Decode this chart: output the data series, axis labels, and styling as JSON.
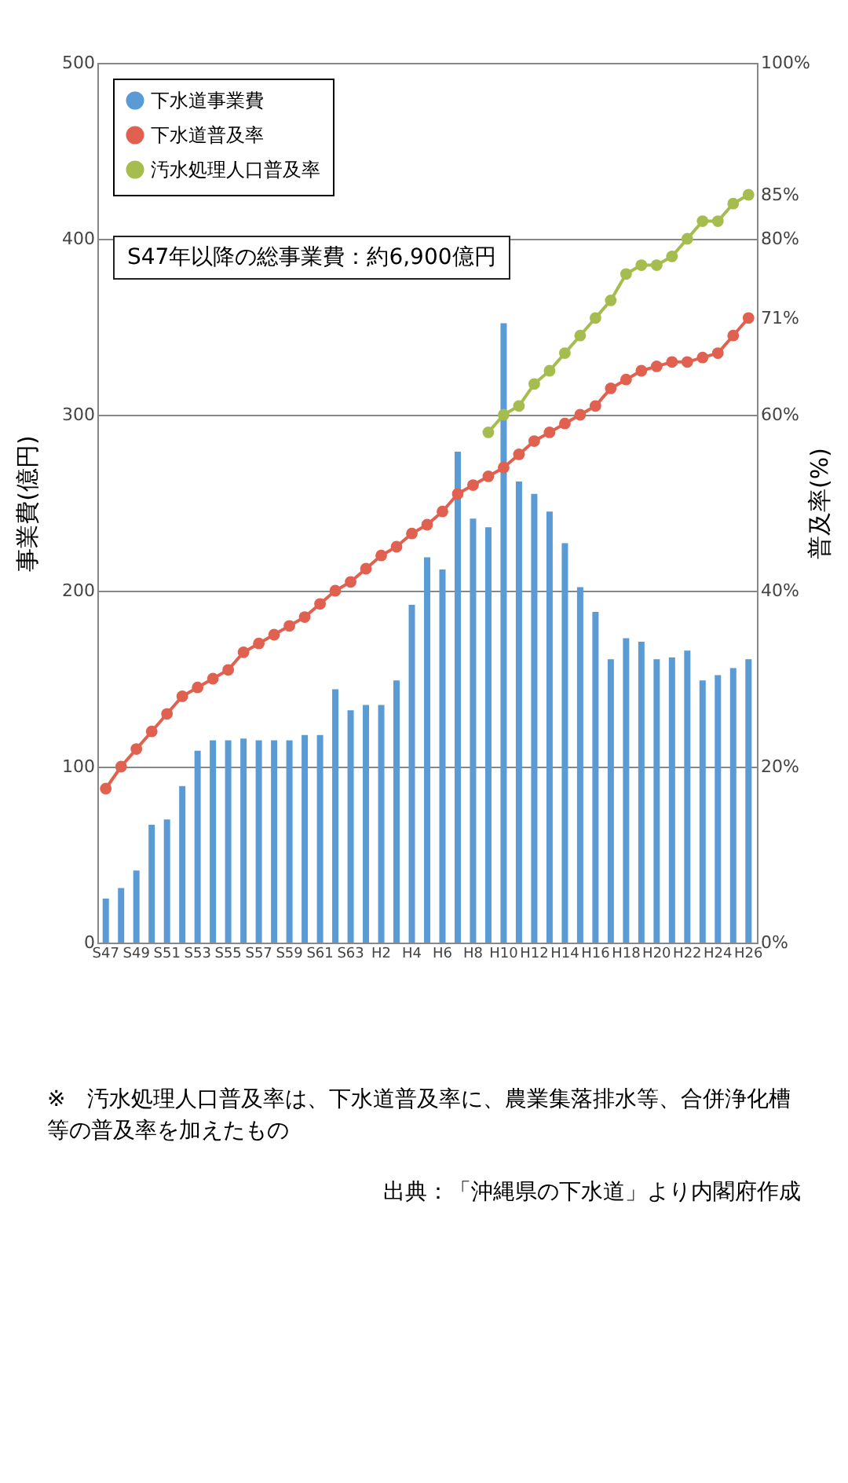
{
  "chart_data": {
    "type": "bar",
    "xlabel": null,
    "ylabel": "事業費(億円)",
    "y2label": "普及率(%)",
    "categories": [
      "S47",
      null,
      "S49",
      null,
      "S51",
      null,
      "S53",
      null,
      "S55",
      null,
      "S57",
      null,
      "S59",
      null,
      "S61",
      null,
      "S63",
      null,
      "H2",
      null,
      "H4",
      null,
      "H6",
      null,
      "H8",
      null,
      "H10",
      null,
      "H12",
      null,
      "H14",
      null,
      "H16",
      null,
      "H18",
      null,
      "H20",
      null,
      "H22",
      null,
      "H24",
      null,
      "H26"
    ],
    "series": [
      {
        "name": "下水道事業費",
        "color": "#5b9bd5",
        "values": [
          25,
          31,
          41,
          67,
          70,
          89,
          109,
          115,
          115,
          116,
          115,
          115,
          115,
          118,
          118,
          144,
          132,
          135,
          135,
          149,
          192,
          219,
          212,
          279,
          241,
          236,
          352,
          262,
          255,
          245,
          227,
          202,
          188,
          161,
          173,
          171,
          161,
          162,
          166,
          149,
          152,
          156,
          161
        ]
      },
      {
        "name": "下水道普及率",
        "type": "line",
        "axis": "y2",
        "color": "#e0614f",
        "values": [
          17.5,
          20,
          22,
          24,
          26,
          28,
          29,
          30,
          31,
          33,
          34,
          35,
          36,
          37,
          38.5,
          40,
          41,
          42.5,
          44,
          45,
          46.5,
          47.5,
          49,
          51,
          52,
          53,
          54,
          55.5,
          57,
          58,
          59,
          60,
          61,
          63,
          64,
          65,
          65.5,
          66,
          66,
          66.5,
          67,
          69,
          71
        ]
      },
      {
        "name": "汚水処理人口普及率",
        "type": "line",
        "axis": "y2",
        "color": "#a5bd4f",
        "values": [
          null,
          null,
          null,
          null,
          null,
          null,
          null,
          null,
          null,
          null,
          null,
          null,
          null,
          null,
          null,
          null,
          null,
          null,
          null,
          null,
          null,
          null,
          null,
          null,
          null,
          58,
          60,
          61,
          63.5,
          65,
          67,
          69,
          71,
          73,
          76,
          77,
          77,
          78,
          80,
          82,
          82,
          84,
          85
        ]
      }
    ],
    "ylim": [
      0,
      500
    ],
    "yticks": [
      0,
      100,
      200,
      300,
      400,
      500
    ],
    "y2lim": [
      0,
      100
    ],
    "y2ticks": [
      {
        "value": 0,
        "label": "0%"
      },
      {
        "value": 20,
        "label": "20%"
      },
      {
        "value": 40,
        "label": "40%"
      },
      {
        "value": 60,
        "label": "60%"
      },
      {
        "value": 71,
        "label": "71%"
      },
      {
        "value": 80,
        "label": "80%"
      },
      {
        "value": 85,
        "label": "85%"
      },
      {
        "value": 100,
        "label": "100%"
      }
    ],
    "grid": "y",
    "legend": "top left",
    "marker": "circle",
    "line_style": "solid",
    "annotations": [
      "S47年以降の総事業費：約6,900億円",
      "※　汚水処理人口普及率は、下水道普及率に、農業集落排水等、合併浄化槽等の普及率を加えたもの",
      "出典：「沖縄県の下水道」より内閣府作成"
    ]
  }
}
